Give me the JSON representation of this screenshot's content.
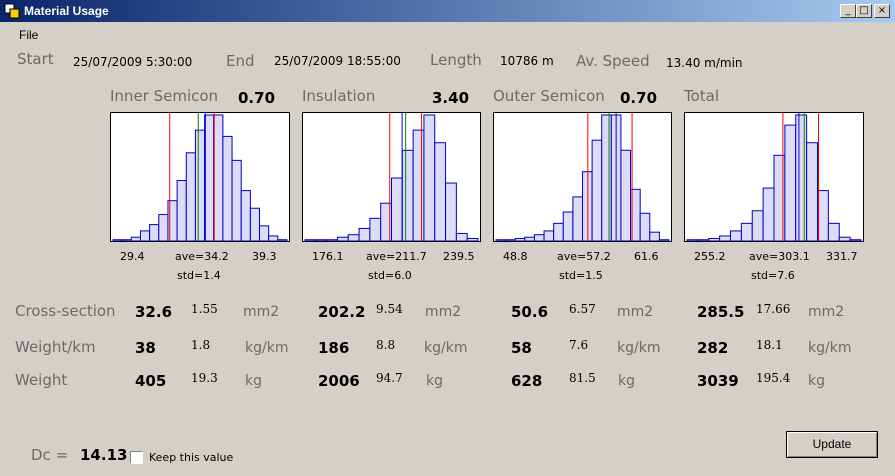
{
  "window": {
    "title": "Material Usage"
  },
  "menu": {
    "file": "File"
  },
  "header": {
    "start_label": "Start",
    "start_value": "25/07/2009 5:30:00",
    "end_label": "End",
    "end_value": "25/07/2009 18:55:00",
    "length_label": "Length",
    "length_value": "10786 m",
    "speed_label": "Av. Speed",
    "speed_value": "13.40 m/min"
  },
  "panels": [
    {
      "title": "Inner Semicon",
      "value": "0.70",
      "min": "29.4",
      "ave": "ave=34.2",
      "max": "39.3",
      "std": "std=1.4",
      "bars": [
        1,
        1,
        3,
        8,
        13,
        21,
        32,
        48,
        70,
        88,
        100,
        100,
        83,
        64,
        40,
        26,
        12,
        4,
        1
      ],
      "red": [
        0.33,
        0.58
      ],
      "blue": 0.53,
      "green": 0.49
    },
    {
      "title": "Insulation",
      "value": "3.40",
      "min": "176.1",
      "ave": "ave=211.7",
      "max": "239.5",
      "std": "std=6.0",
      "bars": [
        1,
        1,
        1,
        3,
        5,
        10,
        18,
        30,
        50,
        72,
        88,
        100,
        78,
        46,
        6,
        2
      ],
      "red": [
        0.49,
        0.67
      ],
      "blue": 0.56,
      "green": 0.58
    },
    {
      "title": "Outer Semicon",
      "value": "0.70",
      "min": "48.8",
      "ave": "ave=57.2",
      "max": "61.6",
      "std": "std=1.5",
      "bars": [
        1,
        1,
        2,
        3,
        5,
        8,
        14,
        23,
        35,
        55,
        80,
        100,
        100,
        72,
        41,
        22,
        7,
        1
      ],
      "red": [
        0.53,
        0.78
      ],
      "blue": 0.69,
      "green": 0.65
    },
    {
      "title": "Total",
      "value": "",
      "min": "255.2",
      "ave": "ave=303.1",
      "max": "331.7",
      "std": "std=7.6",
      "bars": [
        1,
        1,
        2,
        4,
        8,
        14,
        24,
        42,
        68,
        92,
        100,
        78,
        40,
        14,
        3,
        1
      ],
      "red": [
        0.55,
        0.75
      ],
      "blue": 0.64,
      "green": 0.67
    }
  ],
  "rows": [
    {
      "label": "Cross-section",
      "unit": "mm2",
      "cells": [
        {
          "big": "32.6",
          "small": "1.55"
        },
        {
          "big": "202.2",
          "small": "9.54"
        },
        {
          "big": "50.6",
          "small": "6.57"
        },
        {
          "big": "285.5",
          "small": "17.66"
        }
      ]
    },
    {
      "label": "Weight/km",
      "unit": "kg/km",
      "cells": [
        {
          "big": "38",
          "small": "1.8"
        },
        {
          "big": "186",
          "small": "8.8"
        },
        {
          "big": "58",
          "small": "7.6"
        },
        {
          "big": "282",
          "small": "18.1"
        }
      ]
    },
    {
      "label": "Weight",
      "unit": "kg",
      "cells": [
        {
          "big": "405",
          "small": "19.3"
        },
        {
          "big": "2006",
          "small": "94.7"
        },
        {
          "big": "628",
          "small": "81.5"
        },
        {
          "big": "3039",
          "small": "195.4"
        }
      ]
    }
  ],
  "footer": {
    "dc_label": "Dc =",
    "dc_value": "14.13",
    "keep_label": "Keep this value",
    "update_label": "Update"
  },
  "colors": {
    "bar_fill": "#dcdcf8",
    "bar_stroke": "#0000c0",
    "red_line": "#ff0000",
    "blue_line": "#0000ff",
    "green_line": "#008000"
  }
}
